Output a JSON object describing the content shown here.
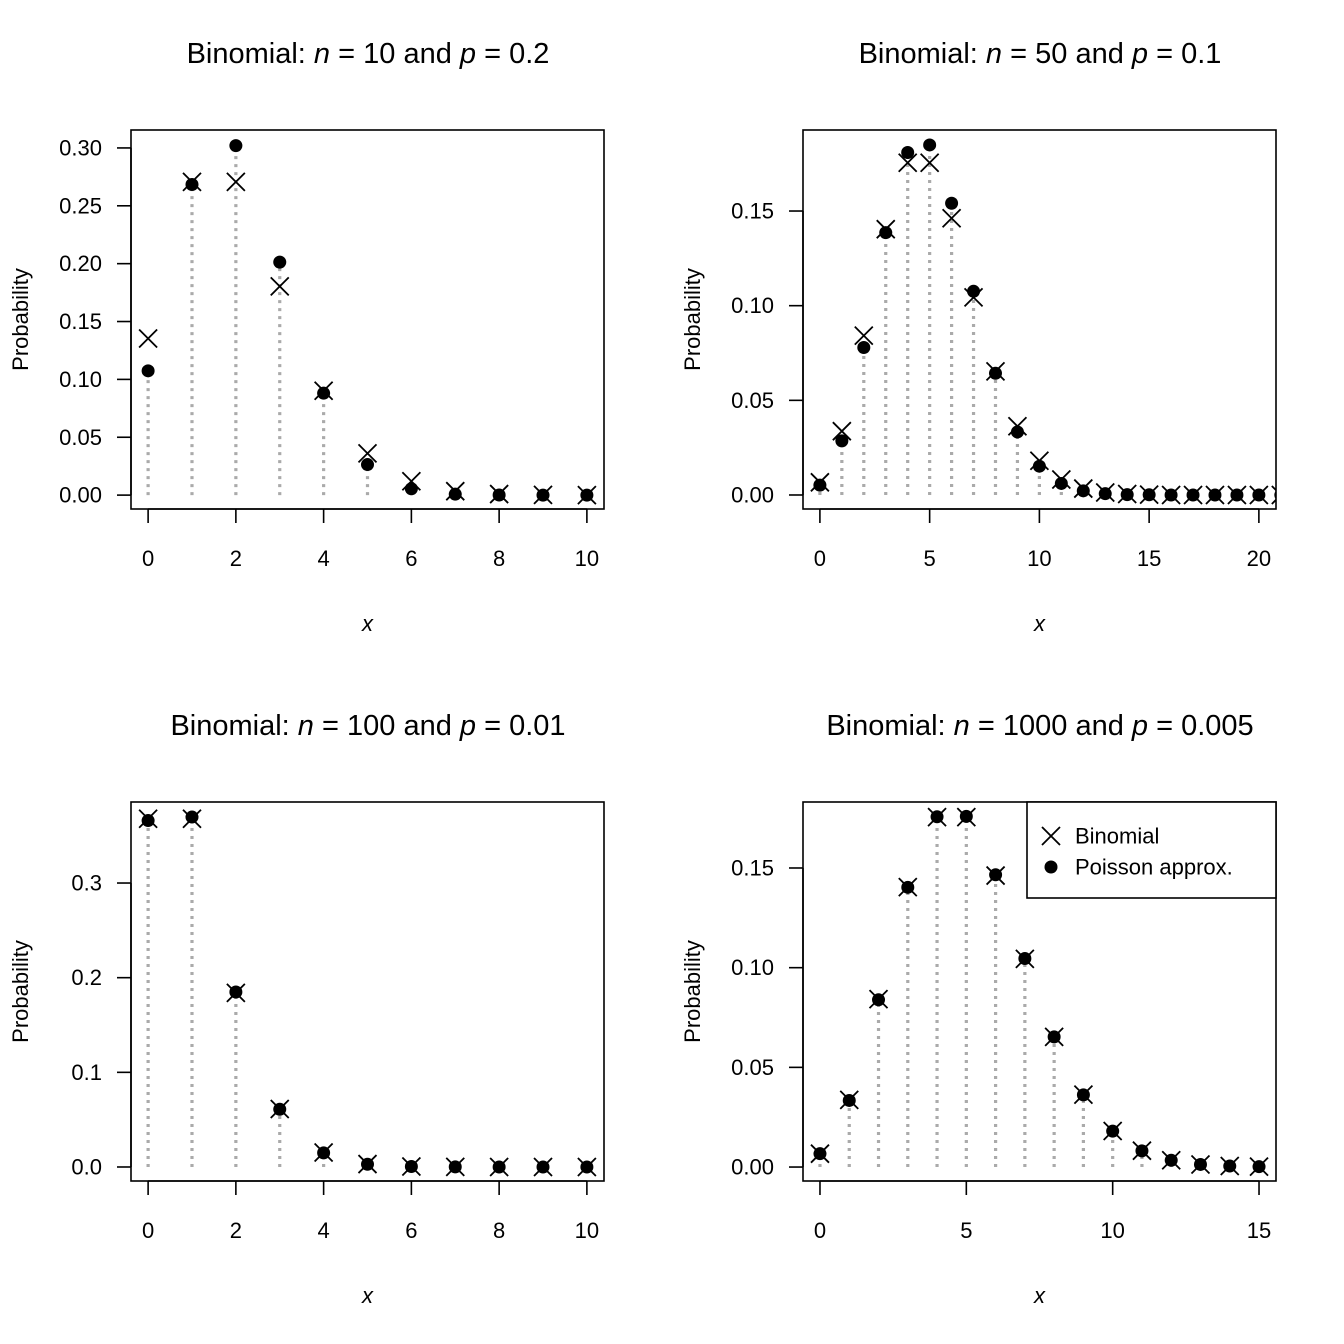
{
  "chart_data": [
    {
      "type": "scatter",
      "title": {
        "prefix": "Binomial:",
        "n_symbol": "n",
        "n": "10",
        "and": "and",
        "p_symbol": "p",
        "p": "0.2"
      },
      "xlabel": "x",
      "ylabel": "Probability",
      "xlim": [
        -0.39,
        10.39
      ],
      "ylim": [
        -0.012,
        0.3155
      ],
      "xticks": [
        0,
        2,
        4,
        6,
        8,
        10
      ],
      "yticks": [
        "0.00",
        "0.05",
        "0.10",
        "0.15",
        "0.20",
        "0.25",
        "0.30"
      ],
      "x": [
        0,
        1,
        2,
        3,
        4,
        5,
        6,
        7,
        8,
        9,
        10
      ],
      "series": [
        {
          "name": "Binomial",
          "marker": "cross",
          "values": [
            0.1353,
            0.2707,
            0.2707,
            0.1804,
            0.0902,
            0.0361,
            0.012,
            0.0034,
            0.0009,
            0.0002,
            0.0
          ]
        },
        {
          "name": "Poisson approx.",
          "marker": "dot",
          "values": [
            0.1074,
            0.2684,
            0.302,
            0.2013,
            0.0881,
            0.0264,
            0.0055,
            0.0008,
            0.0001,
            0.0,
            0.0
          ]
        }
      ]
    },
    {
      "type": "scatter",
      "title": {
        "prefix": "Binomial:",
        "n_symbol": "n",
        "n": "50",
        "and": "and",
        "p_symbol": "p",
        "p": "0.1"
      },
      "xlabel": "x",
      "ylabel": "Probability",
      "xlim": [
        -0.77,
        20.78
      ],
      "ylim": [
        -0.0074,
        0.1928
      ],
      "xticks": [
        0,
        5,
        10,
        15,
        20
      ],
      "yticks": [
        "0.00",
        "0.05",
        "0.10",
        "0.15"
      ],
      "x": [
        0,
        1,
        2,
        3,
        4,
        5,
        6,
        7,
        8,
        9,
        10,
        11,
        12,
        13,
        14,
        15,
        16,
        17,
        18,
        19,
        20,
        21
      ],
      "series": [
        {
          "name": "Binomial",
          "marker": "cross",
          "values": [
            0.0067,
            0.0337,
            0.0842,
            0.1404,
            0.1755,
            0.1755,
            0.1462,
            0.1044,
            0.0653,
            0.0363,
            0.0181,
            0.0082,
            0.0034,
            0.0013,
            0.0005,
            0.0002,
            0.0,
            0.0,
            0.0,
            0.0,
            0.0,
            0.0
          ]
        },
        {
          "name": "Poisson approx.",
          "marker": "dot",
          "values": [
            0.0052,
            0.0286,
            0.0779,
            0.1386,
            0.1809,
            0.1849,
            0.1541,
            0.1076,
            0.0643,
            0.0333,
            0.0152,
            0.0061,
            0.0022,
            0.0007,
            0.0002,
            0.0001,
            0.0,
            0.0,
            0.0,
            0.0,
            0.0,
            0.0
          ]
        }
      ]
    },
    {
      "type": "scatter",
      "title": {
        "prefix": "Binomial:",
        "n_symbol": "n",
        "n": "100",
        "and": "and",
        "p_symbol": "p",
        "p": "0.01"
      },
      "xlabel": "x",
      "ylabel": "Probability",
      "xlim": [
        -0.39,
        10.39
      ],
      "ylim": [
        -0.0148,
        0.3856
      ],
      "xticks": [
        0,
        2,
        4,
        6,
        8,
        10
      ],
      "yticks": [
        "0.0",
        "0.1",
        "0.2",
        "0.3"
      ],
      "x": [
        0,
        1,
        2,
        3,
        4,
        5,
        6,
        7,
        8,
        9,
        10
      ],
      "series": [
        {
          "name": "Binomial",
          "marker": "cross",
          "values": [
            0.3679,
            0.3679,
            0.1839,
            0.0613,
            0.0153,
            0.0031,
            0.0005,
            0.0001,
            0.0,
            0.0,
            0.0
          ]
        },
        {
          "name": "Poisson approx.",
          "marker": "dot",
          "values": [
            0.366,
            0.3697,
            0.1849,
            0.061,
            0.0149,
            0.0029,
            0.0005,
            0.0001,
            0.0,
            0.0,
            0.0
          ]
        }
      ]
    },
    {
      "type": "scatter",
      "title": {
        "prefix": "Binomial:",
        "n_symbol": "n",
        "n": "1000",
        "and": "and",
        "p_symbol": "p",
        "p": "0.005"
      },
      "xlabel": "x",
      "ylabel": "Probability",
      "xlim": [
        -0.58,
        15.58
      ],
      "ylim": [
        -0.007,
        0.1831
      ],
      "xticks": [
        0,
        5,
        10,
        15
      ],
      "yticks": [
        "0.00",
        "0.05",
        "0.10",
        "0.15"
      ],
      "x": [
        0,
        1,
        2,
        3,
        4,
        5,
        6,
        7,
        8,
        9,
        10,
        11,
        12,
        13,
        14,
        15
      ],
      "legend": {
        "position": "top-right",
        "entries": [
          "Binomial",
          "Poisson approx."
        ]
      },
      "series": [
        {
          "name": "Binomial",
          "marker": "cross",
          "values": [
            0.0067,
            0.0337,
            0.0842,
            0.1404,
            0.1755,
            0.1755,
            0.1462,
            0.1044,
            0.0653,
            0.0363,
            0.0181,
            0.0082,
            0.0034,
            0.0013,
            0.0005,
            0.0002
          ]
        },
        {
          "name": "Poisson approx.",
          "marker": "dot",
          "values": [
            0.0067,
            0.0334,
            0.0839,
            0.1403,
            0.1757,
            0.1759,
            0.1466,
            0.1046,
            0.0653,
            0.0362,
            0.018,
            0.0081,
            0.0034,
            0.0013,
            0.0005,
            0.0002
          ]
        }
      ]
    }
  ]
}
